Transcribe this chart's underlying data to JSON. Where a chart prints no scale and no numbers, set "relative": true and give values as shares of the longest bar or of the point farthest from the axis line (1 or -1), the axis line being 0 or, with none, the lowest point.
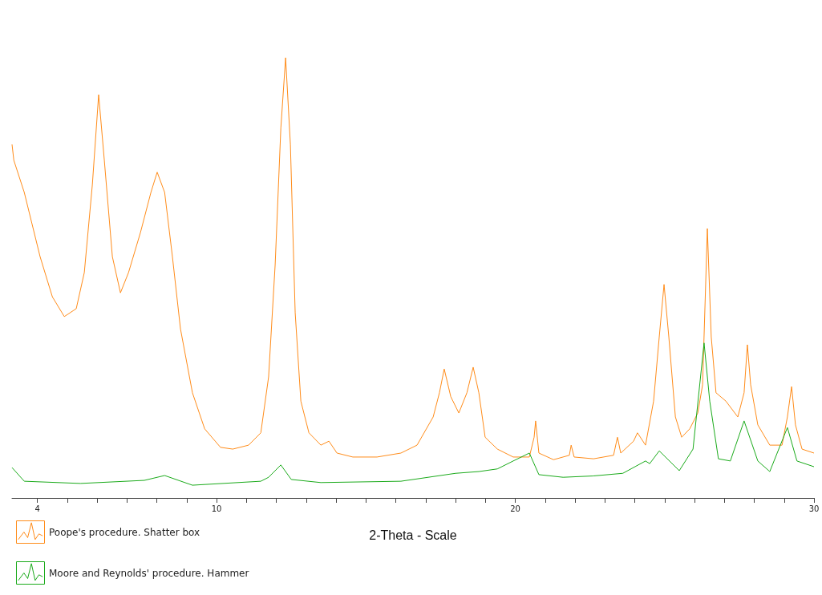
{
  "chart_data": {
    "type": "line",
    "relative": true,
    "xlabel": "2-Theta - Scale",
    "legend": "bottom left",
    "grid": false,
    "marker": "none",
    "tick_labels": "x",
    "xlim": [
      3.15,
      30
    ],
    "xticks": [
      4,
      {
        "value": 5,
        "label": null
      },
      {
        "value": 6,
        "label": null
      },
      {
        "value": 7,
        "label": null
      },
      {
        "value": 8,
        "label": null
      },
      {
        "value": 9,
        "label": null
      },
      10,
      {
        "value": 11,
        "label": null
      },
      {
        "value": 12,
        "label": null
      },
      {
        "value": 13,
        "label": null
      },
      {
        "value": 14,
        "label": null
      },
      {
        "value": 15,
        "label": null
      },
      {
        "value": 16,
        "label": null
      },
      {
        "value": 17,
        "label": null
      },
      {
        "value": 18,
        "label": null
      },
      {
        "value": 19,
        "label": null
      },
      20,
      {
        "value": 21,
        "label": null
      },
      {
        "value": 22,
        "label": null
      },
      {
        "value": 23,
        "label": null
      },
      {
        "value": 24,
        "label": null
      },
      {
        "value": 25,
        "label": null
      },
      {
        "value": 26,
        "label": null
      },
      {
        "value": 27,
        "label": null
      },
      {
        "value": 28,
        "label": null
      },
      {
        "value": 29,
        "label": null
      },
      30
    ],
    "series": [
      {
        "name": "Poope's procedure. Shatter box",
        "color": "#ff8c1a",
        "x": [
          3.15,
          3.21,
          3.56,
          4.09,
          4.5,
          4.9,
          5.3,
          5.57,
          5.84,
          6.05,
          6.24,
          6.51,
          6.78,
          7.05,
          7.45,
          7.8,
          8.01,
          8.26,
          8.52,
          8.79,
          9.19,
          9.6,
          10.13,
          10.54,
          11.07,
          11.48,
          11.74,
          11.96,
          12.15,
          12.31,
          12.47,
          12.63,
          12.82,
          13.09,
          13.49,
          13.76,
          14.03,
          14.56,
          15.37,
          16.17,
          16.71,
          17.25,
          17.46,
          17.62,
          17.84,
          18.11,
          18.38,
          18.59,
          18.78,
          18.99,
          19.4,
          19.93,
          20.47,
          20.63,
          20.68,
          20.79,
          21.28,
          21.81,
          21.87,
          21.97,
          22.62,
          23.29,
          23.42,
          23.53,
          23.96,
          24.09,
          24.36,
          24.63,
          24.82,
          24.98,
          25.14,
          25.36,
          25.57,
          25.84,
          26.11,
          26.27,
          26.43,
          26.56,
          26.72,
          27.05,
          27.45,
          27.66,
          27.77,
          27.88,
          28.12,
          28.52,
          28.93,
          29.11,
          29.25,
          29.38,
          29.6,
          30
        ],
        "values": [
          0.803,
          0.767,
          0.694,
          0.548,
          0.457,
          0.412,
          0.43,
          0.512,
          0.712,
          0.916,
          0.767,
          0.548,
          0.466,
          0.512,
          0.603,
          0.694,
          0.74,
          0.694,
          0.548,
          0.384,
          0.239,
          0.157,
          0.115,
          0.111,
          0.12,
          0.148,
          0.275,
          0.53,
          0.84,
          1,
          0.803,
          0.421,
          0.22,
          0.148,
          0.12,
          0.129,
          0.102,
          0.093,
          0.093,
          0.102,
          0.12,
          0.184,
          0.239,
          0.293,
          0.23,
          0.193,
          0.239,
          0.297,
          0.239,
          0.138,
          0.111,
          0.093,
          0.093,
          0.138,
          0.175,
          0.102,
          0.087,
          0.097,
          0.12,
          0.093,
          0.089,
          0.097,
          0.138,
          0.102,
          0.129,
          0.148,
          0.12,
          0.22,
          0.366,
          0.485,
          0.366,
          0.184,
          0.138,
          0.157,
          0.193,
          0.257,
          0.612,
          0.366,
          0.239,
          0.22,
          0.184,
          0.239,
          0.348,
          0.257,
          0.166,
          0.12,
          0.12,
          0.184,
          0.253,
          0.166,
          0.111,
          0.102
        ]
      },
      {
        "name": "Moore and Reynolds' procedure. Hammer",
        "color": "#1aaa1a",
        "x": [
          3.15,
          3.56,
          5.44,
          7.58,
          8.26,
          9.19,
          11.48,
          11.74,
          12.15,
          12.5,
          13.49,
          16.17,
          18.0,
          18.78,
          19.4,
          19.93,
          20.47,
          20.79,
          21.6,
          22.6,
          23.6,
          24.36,
          24.5,
          24.82,
          25.49,
          25.95,
          26.32,
          26.51,
          26.8,
          27.2,
          27.66,
          28.12,
          28.52,
          29.11,
          29.43,
          30
        ],
        "values": [
          0.069,
          0.038,
          0.033,
          0.04,
          0.051,
          0.029,
          0.038,
          0.047,
          0.075,
          0.042,
          0.035,
          0.038,
          0.056,
          0.06,
          0.066,
          0.084,
          0.102,
          0.053,
          0.047,
          0.05,
          0.056,
          0.084,
          0.078,
          0.107,
          0.062,
          0.111,
          0.352,
          0.22,
          0.089,
          0.084,
          0.175,
          0.084,
          0.06,
          0.16,
          0.084,
          0.071
        ]
      }
    ]
  }
}
